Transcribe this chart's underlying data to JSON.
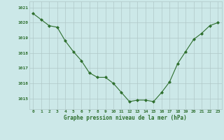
{
  "x": [
    0,
    1,
    2,
    3,
    4,
    5,
    6,
    7,
    8,
    9,
    10,
    11,
    12,
    13,
    14,
    15,
    16,
    17,
    18,
    19,
    20,
    21,
    22,
    23
  ],
  "y": [
    1020.6,
    1020.2,
    1019.8,
    1019.7,
    1018.8,
    1018.1,
    1017.5,
    1016.7,
    1016.4,
    1016.4,
    1016.0,
    1015.4,
    1014.8,
    1014.9,
    1014.9,
    1014.8,
    1015.4,
    1016.1,
    1017.3,
    1018.1,
    1018.9,
    1019.3,
    1019.8,
    1020.0
  ],
  "line_color": "#2d6e2d",
  "marker": "D",
  "marker_size": 2,
  "bg_color": "#cce8e8",
  "grid_color": "#b0c8c8",
  "xlabel": "Graphe pression niveau de la mer (hPa)",
  "xlabel_color": "#2d6e2d",
  "tick_label_color": "#2d6e2d",
  "ylim_min": 1014.3,
  "ylim_max": 1021.4,
  "yticks": [
    1015,
    1016,
    1017,
    1018,
    1019,
    1020,
    1021
  ],
  "xticks": [
    0,
    1,
    2,
    3,
    4,
    5,
    6,
    7,
    8,
    9,
    10,
    11,
    12,
    13,
    14,
    15,
    16,
    17,
    18,
    19,
    20,
    21,
    22,
    23
  ]
}
